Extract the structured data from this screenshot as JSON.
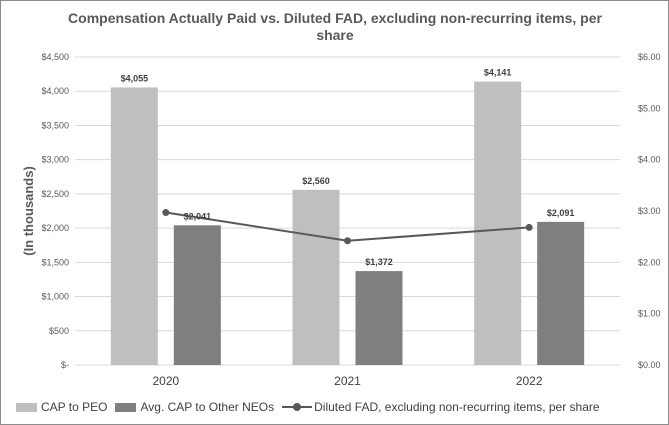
{
  "chart_data": {
    "type": "bar",
    "title": "Compensation Actually Paid vs. Diluted FAD, excluding non-recurring items, per share",
    "ylabel": "(In thousands)",
    "categories": [
      "2020",
      "2021",
      "2022"
    ],
    "ylim": [
      0,
      4500
    ],
    "y2lim": [
      0,
      6
    ],
    "yticks": [
      "$-",
      "$500",
      "$1,000",
      "$1,500",
      "$2,000",
      "$2,500",
      "$3,000",
      "$3,500",
      "$4,000",
      "$4,500"
    ],
    "y2ticks": [
      "$0.00",
      "$1.00",
      "$2.00",
      "$3.00",
      "$4.00",
      "$5.00",
      "$6.00"
    ],
    "grid": true,
    "legend_position": "bottom",
    "series": [
      {
        "name": "CAP to PEO",
        "kind": "bar",
        "axis": "left",
        "color": "#bfbfbf",
        "values": [
          4055,
          2560,
          4141
        ],
        "labels": [
          "$4,055",
          "$2,560",
          "$4,141"
        ]
      },
      {
        "name": "Avg. CAP to Other NEOs",
        "kind": "bar",
        "axis": "left",
        "color": "#7f7f7f",
        "values": [
          2041,
          1372,
          2091
        ],
        "labels": [
          "$2,041",
          "$1,372",
          "$2,091"
        ]
      },
      {
        "name": "Diluted FAD, excluding non-recurring items, per share",
        "kind": "line",
        "axis": "right",
        "color": "#595959",
        "values": [
          2.97,
          2.42,
          2.68
        ]
      }
    ]
  }
}
